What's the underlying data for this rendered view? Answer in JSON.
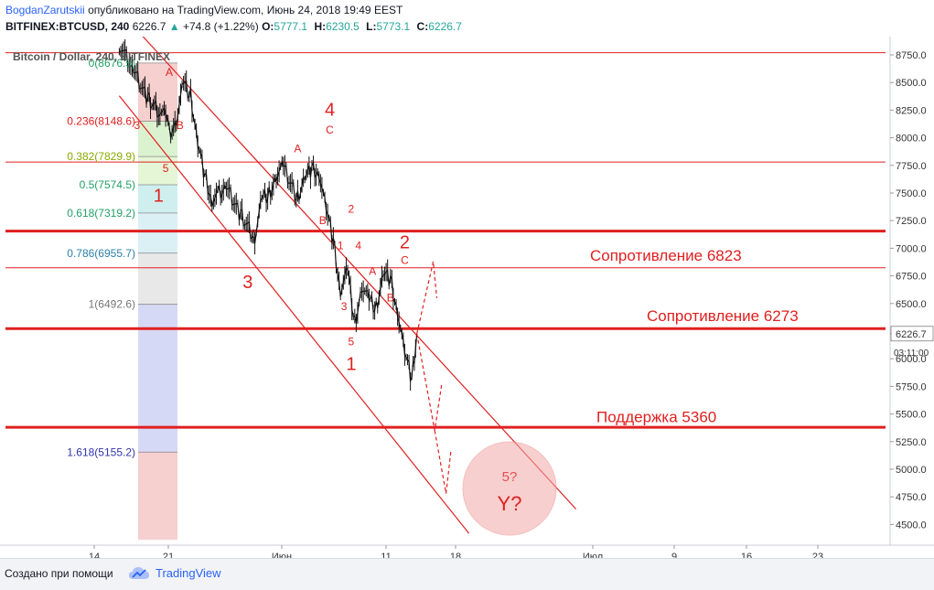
{
  "header": {
    "author": "BogdanZarutskii",
    "published": "опубликовано на TradingView.com, Июнь 24, 2018 19:49 EEST",
    "symbol": "BITFINEX:BTCUSD, 240",
    "last": "6226.7",
    "arrow": "▲",
    "change": "+74.8 (+1.22%)",
    "o_label": "O:",
    "o_value": "5777.1",
    "h_label": "H:",
    "h_value": "6230.5",
    "l_label": "L:",
    "l_value": "5773.1",
    "c_label": "C:",
    "c_value": "6226.7"
  },
  "footer": {
    "created_with": "Создано при помощи",
    "brand": "TradingView"
  },
  "colors": {
    "up": "#26a69a",
    "accent_red": "#e02020",
    "fib_red_zone": "#f4c7c7",
    "fib_green_zone": "#d5f0c8",
    "fib_teal_zone": "#c7ecec",
    "fib_gray_zone": "#e4e4e4",
    "fib_blue_zone": "#cfd2f4"
  },
  "chart_data": {
    "type": "candlestick",
    "title": "Bitcoin / Dollar, 240, BITFINEX",
    "ylim": [
      4400,
      8800
    ],
    "y_ticks": [
      "8750.0",
      "8500.0",
      "8250.0",
      "8000.0",
      "7750.0",
      "7500.0",
      "7250.0",
      "7000.0",
      "6750.0",
      "6500.0",
      "6226.7",
      "6000.0",
      "5750.0",
      "5500.0",
      "5250.0",
      "5000.0",
      "4750.0",
      "4500.0"
    ],
    "x_ticks": [
      "14",
      "21",
      "Июн",
      "11",
      "18",
      "Июл",
      "9",
      "16",
      "23"
    ],
    "price_tag": "6226.7",
    "countdown": "03:11:00",
    "price_path": [
      [
        -7,
        8850
      ],
      [
        -5,
        8600
      ],
      [
        -3,
        8350
      ],
      [
        -1.5,
        8250
      ],
      [
        -0.5,
        8200
      ],
      [
        0,
        8050
      ],
      [
        1,
        8150
      ],
      [
        2,
        8480
      ],
      [
        3,
        8380
      ],
      [
        4,
        7950
      ],
      [
        5,
        7650
      ],
      [
        6,
        7450
      ],
      [
        8,
        7550
      ],
      [
        10,
        7300
      ],
      [
        12,
        7100
      ],
      [
        13,
        7450
      ],
      [
        14,
        7500
      ],
      [
        15,
        7650
      ],
      [
        16,
        7730
      ],
      [
        18,
        7450
      ],
      [
        19,
        7650
      ],
      [
        20,
        7720
      ],
      [
        21,
        7700
      ],
      [
        22,
        7350
      ],
      [
        23,
        7050
      ],
      [
        24,
        6620
      ],
      [
        25,
        6800
      ],
      [
        26,
        6330
      ],
      [
        27,
        6650
      ],
      [
        28,
        6520
      ],
      [
        29,
        6450
      ],
      [
        30,
        6780
      ],
      [
        31,
        6720
      ],
      [
        32,
        6450
      ],
      [
        33,
        6050
      ],
      [
        34,
        5800
      ],
      [
        34.7,
        6226.7
      ]
    ],
    "fibonacci": [
      {
        "ratio": "0",
        "label": "0(8676.5)",
        "price": 8676.5
      },
      {
        "ratio": "0.236",
        "label": "0.236(8148.6)",
        "price": 8148.6
      },
      {
        "ratio": "0.382",
        "label": "0.382(7829.9)",
        "price": 7829.9
      },
      {
        "ratio": "0.5",
        "label": "0.5(7574.5)",
        "price": 7574.5
      },
      {
        "ratio": "0.618",
        "label": "0.618(7319.2)",
        "price": 7319.2
      },
      {
        "ratio": "0.786",
        "label": "0.786(6955.7)",
        "price": 6955.7
      },
      {
        "ratio": "1",
        "label": "1(6492.6)",
        "price": 6492.6
      },
      {
        "ratio": "1.618",
        "label": "1.618(5155.2)",
        "price": 5155.2
      }
    ],
    "horizontal_levels": [
      {
        "price": 8770,
        "weight": "thin"
      },
      {
        "price": 7780,
        "weight": "thin"
      },
      {
        "price": 7155,
        "weight": "thick"
      },
      {
        "price": 6823,
        "weight": "thin"
      },
      {
        "price": 6273,
        "weight": "thick"
      },
      {
        "price": 5380,
        "weight": "thick"
      }
    ],
    "annotations": [
      {
        "text": "Сопротивление 6823",
        "price": 6823
      },
      {
        "text": "Сопротивление 6273",
        "price": 6273
      },
      {
        "text": "Поддержка 5360",
        "price": 5360
      }
    ],
    "wave_labels": [
      {
        "text": "3",
        "t": -4.5,
        "price": 8080,
        "size": "small"
      },
      {
        "text": "A",
        "t": 0,
        "price": 8560,
        "size": "small"
      },
      {
        "text": "B",
        "t": 1.5,
        "price": 8080,
        "size": "small"
      },
      {
        "text": "5",
        "t": -0.5,
        "price": 7690,
        "size": "small"
      },
      {
        "text": "1",
        "t": -1.5,
        "price": 7420,
        "size": "large"
      },
      {
        "text": "3",
        "t": 11,
        "price": 6640,
        "size": "large"
      },
      {
        "text": "A",
        "t": 18,
        "price": 7870,
        "size": "small"
      },
      {
        "text": "4",
        "t": 22.5,
        "price": 8200,
        "size": "large"
      },
      {
        "text": "C",
        "t": 22.5,
        "price": 8040,
        "size": "small"
      },
      {
        "text": "B",
        "t": 21.5,
        "price": 7220,
        "size": "small"
      },
      {
        "text": "2",
        "t": 25.5,
        "price": 7320,
        "size": "small"
      },
      {
        "text": "1",
        "t": 24,
        "price": 6990,
        "size": "small"
      },
      {
        "text": "4",
        "t": 26.5,
        "price": 6990,
        "size": "small"
      },
      {
        "text": "3",
        "t": 24.5,
        "price": 6440,
        "size": "small"
      },
      {
        "text": "A",
        "t": 28.5,
        "price": 6760,
        "size": "small"
      },
      {
        "text": "B",
        "t": 31,
        "price": 6520,
        "size": "small"
      },
      {
        "text": "5",
        "t": 25.5,
        "price": 6120,
        "size": "small"
      },
      {
        "text": "1",
        "t": 25.5,
        "price": 5900,
        "size": "large"
      },
      {
        "text": "2",
        "t": 33,
        "price": 7000,
        "size": "large"
      },
      {
        "text": "C",
        "t": 33,
        "price": 6860,
        "size": "small"
      }
    ],
    "forecast_circle": {
      "top": "5?",
      "bottom": "Y?"
    },
    "forecast_path": [
      [
        34.7,
        6226.7
      ],
      [
        37,
        6880
      ],
      [
        37.5,
        6550
      ]
    ],
    "forecast_path_down": [
      [
        34.7,
        6226.7
      ],
      [
        37.2,
        5350
      ],
      [
        38.2,
        5780
      ]
    ],
    "forecast_path_low": [
      [
        37.2,
        5350
      ],
      [
        38.8,
        4780
      ],
      [
        39.5,
        5180
      ]
    ],
    "channel_lines": [
      {
        "from": [
          -7,
          8380
        ],
        "to": [
          42,
          4420
        ]
      },
      {
        "from": [
          -7,
          9150
        ],
        "to": [
          57,
          4640
        ]
      }
    ]
  }
}
